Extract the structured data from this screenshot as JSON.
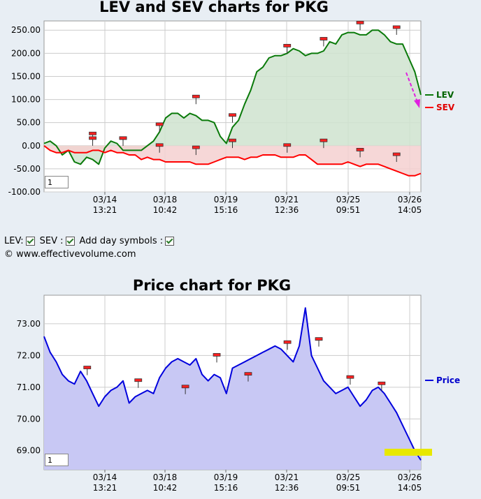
{
  "controls": {
    "lev_label": "LEV:",
    "sev_label": "SEV :",
    "day_symbols_label": "Add day symbols :"
  },
  "copyright": "© www.effectivevolume.com",
  "chart_data": [
    {
      "type": "line",
      "title": "LEV and SEV charts for PKG",
      "legend": [
        "LEV",
        "SEV"
      ],
      "legend_position": "right",
      "grid": true,
      "ylim": [
        -100,
        270
      ],
      "yticks": [
        "250.00",
        "200.00",
        "150.00",
        "100.00",
        "50.00",
        "0.00",
        "-50.00",
        "-100.00"
      ],
      "xticks": [
        [
          "03/14",
          "13:21"
        ],
        [
          "03/18",
          "10:42"
        ],
        [
          "03/19",
          "15:16"
        ],
        [
          "03/21",
          "12:36"
        ],
        [
          "03/25",
          "09:51"
        ],
        [
          "03/26",
          "14:05"
        ]
      ],
      "zoom_value": "1",
      "colors": {
        "lev": "#0a7a0a",
        "lev_fill": "#cfe3cf",
        "sev": "#ff0000",
        "sev_fill": "#f5d0d0",
        "arrow": "#e020e0"
      },
      "series": [
        {
          "name": "LEV",
          "values": [
            5,
            10,
            0,
            -20,
            -10,
            -35,
            -40,
            -25,
            -30,
            -40,
            -5,
            10,
            5,
            -10,
            -10,
            -10,
            -10,
            0,
            10,
            30,
            60,
            70,
            70,
            60,
            70,
            65,
            55,
            55,
            50,
            20,
            5,
            40,
            55,
            90,
            120,
            160,
            170,
            190,
            195,
            195,
            200,
            210,
            205,
            195,
            200,
            200,
            205,
            225,
            220,
            240,
            245,
            245,
            240,
            240,
            250,
            250,
            240,
            225,
            220,
            220,
            190,
            160,
            110
          ]
        },
        {
          "name": "SEV",
          "values": [
            0,
            -10,
            -15,
            -15,
            -10,
            -15,
            -15,
            -15,
            -10,
            -10,
            -15,
            -10,
            -15,
            -15,
            -20,
            -20,
            -30,
            -25,
            -30,
            -30,
            -35,
            -35,
            -35,
            -35,
            -35,
            -40,
            -40,
            -40,
            -35,
            -30,
            -25,
            -25,
            -25,
            -30,
            -25,
            -25,
            -20,
            -20,
            -20,
            -25,
            -25,
            -25,
            -20,
            -20,
            -30,
            -40,
            -40,
            -40,
            -40,
            -40,
            -35,
            -40,
            -45,
            -40,
            -40,
            -40,
            -45,
            -50,
            -55,
            -60,
            -65,
            -65,
            -60
          ]
        }
      ],
      "flags": {
        "lev": [
          [
            8,
            25
          ],
          [
            13,
            15
          ],
          [
            19,
            45
          ],
          [
            25,
            105
          ],
          [
            31,
            65
          ],
          [
            40,
            215
          ],
          [
            46,
            230
          ],
          [
            52,
            265
          ],
          [
            58,
            255
          ]
        ],
        "sev": [
          [
            8,
            15
          ],
          [
            13,
            15
          ],
          [
            19,
            0
          ],
          [
            25,
            -5
          ],
          [
            31,
            10
          ],
          [
            40,
            0
          ],
          [
            46,
            10
          ],
          [
            52,
            -10
          ],
          [
            58,
            -20
          ]
        ]
      }
    },
    {
      "type": "line",
      "title": "Price chart for PKG",
      "legend": [
        "Price"
      ],
      "legend_position": "right",
      "grid": true,
      "ylim": [
        68.4,
        73.9
      ],
      "yticks": [
        "73.00",
        "72.00",
        "71.00",
        "70.00",
        "69.00"
      ],
      "xticks": [
        [
          "03/14",
          "13:21"
        ],
        [
          "03/18",
          "10:42"
        ],
        [
          "03/19",
          "15:16"
        ],
        [
          "03/21",
          "12:36"
        ],
        [
          "03/25",
          "09:51"
        ],
        [
          "03/26",
          "14:05"
        ]
      ],
      "zoom_value": "1",
      "colors": {
        "line": "#0000dd",
        "fill": "#c8c8f4",
        "highlight": "#e8e800"
      },
      "highlight_value": 68.95,
      "series": [
        {
          "name": "Price",
          "values": [
            72.6,
            72.1,
            71.8,
            71.4,
            71.2,
            71.1,
            71.5,
            71.2,
            70.8,
            70.4,
            70.7,
            70.9,
            71.0,
            71.2,
            70.5,
            70.7,
            70.8,
            70.9,
            70.8,
            71.3,
            71.6,
            71.8,
            71.9,
            71.8,
            71.7,
            71.9,
            71.4,
            71.2,
            71.4,
            71.3,
            70.8,
            71.6,
            71.7,
            71.8,
            71.9,
            72.0,
            72.1,
            72.2,
            72.3,
            72.2,
            72.0,
            71.8,
            72.3,
            73.5,
            72.0,
            71.6,
            71.2,
            71.0,
            70.8,
            70.9,
            71.0,
            70.7,
            70.4,
            70.6,
            70.9,
            71.0,
            70.8,
            70.5,
            70.2,
            69.8,
            69.4,
            69.0,
            68.7
          ]
        }
      ],
      "flags": [
        [
          11,
          71.6
        ],
        [
          24,
          71.2
        ],
        [
          36,
          71.0
        ],
        [
          44,
          72.0
        ],
        [
          52,
          71.4
        ],
        [
          62,
          72.4
        ],
        [
          70,
          72.5
        ],
        [
          78,
          71.3
        ],
        [
          86,
          71.1
        ]
      ]
    }
  ]
}
